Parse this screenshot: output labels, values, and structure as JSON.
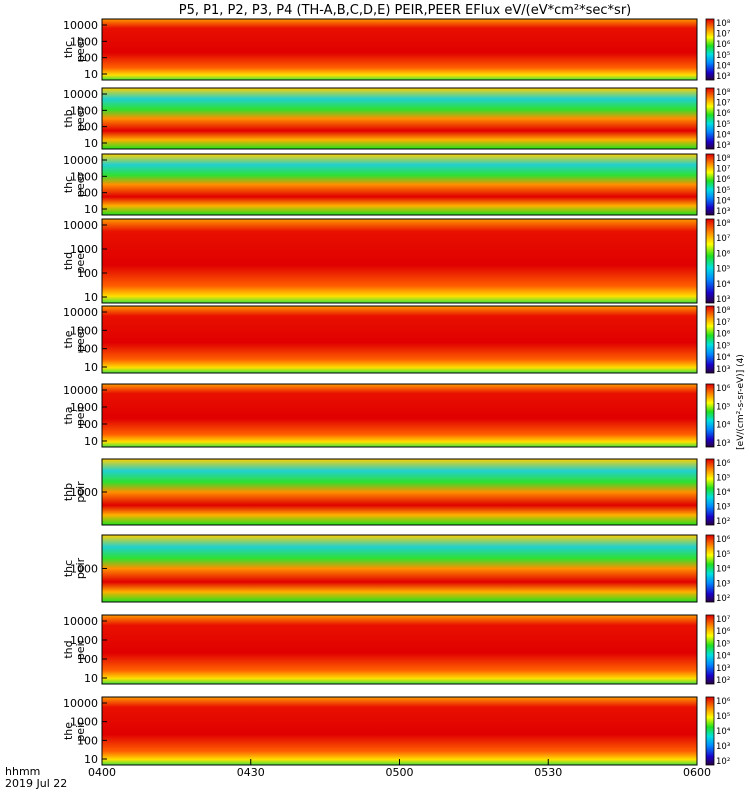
{
  "chart_data": {
    "type": "heatmap",
    "title": "P5, P1, P2, P3, P4 (TH-A,B,C,D,E) PEIR,PEER EFlux eV/(eV*cm²*sec*sr)",
    "x_axis": {
      "label_line1": "hhmm",
      "label_line2": "2019 Jul 22",
      "ticks": [
        "0400",
        "0430",
        "0500",
        "0530",
        "0600"
      ],
      "range_minutes": [
        0,
        120
      ]
    },
    "colorbar_label": "[eV/(cm²-s-sr-eV)] (4)",
    "panels": [
      {
        "probe": "thc",
        "species": "peer",
        "y_ticks": [
          "10",
          "100",
          "1000",
          "10000"
        ],
        "cb_ticks": [
          "10³",
          "10⁴",
          "10⁵",
          "10⁶",
          "10⁷",
          "10⁸"
        ]
      },
      {
        "probe": "thb",
        "species": "peer",
        "y_ticks": [
          "10",
          "100",
          "1000",
          "10000"
        ],
        "cb_ticks": [
          "10³",
          "10⁴",
          "10⁵",
          "10⁶",
          "10⁷",
          "10⁸"
        ]
      },
      {
        "probe": "thc",
        "species": "peer",
        "y_ticks": [
          "10",
          "100",
          "1000",
          "10000"
        ],
        "cb_ticks": [
          "10³",
          "10⁴",
          "10⁵",
          "10⁶",
          "10⁷",
          "10⁸"
        ]
      },
      {
        "probe": "thd",
        "species": "peer",
        "y_ticks": [
          "10",
          "100",
          "1000",
          "10000"
        ],
        "cb_ticks": [
          "10³",
          "10⁴",
          "10⁵",
          "10⁶",
          "10⁷",
          "10⁸"
        ]
      },
      {
        "probe": "the",
        "species": "peer",
        "y_ticks": [
          "10",
          "100",
          "1000",
          "10000"
        ],
        "cb_ticks": [
          "10³",
          "10⁴",
          "10⁵",
          "10⁶",
          "10⁷",
          "10⁸"
        ]
      },
      {
        "probe": "tha",
        "species": "peir",
        "y_ticks": [
          "10",
          "100",
          "1000",
          "10000"
        ],
        "cb_ticks": [
          "10³",
          "10⁴",
          "10⁵",
          "10⁶"
        ]
      },
      {
        "probe": "thb",
        "species": "peir",
        "y_ticks": [
          "1000"
        ],
        "cb_ticks": [
          "10²",
          "10³",
          "10⁴",
          "10⁵",
          "10⁶"
        ]
      },
      {
        "probe": "thc",
        "species": "peir",
        "y_ticks": [
          "1000"
        ],
        "cb_ticks": [
          "10²",
          "10³",
          "10⁴",
          "10⁵",
          "10⁶"
        ]
      },
      {
        "probe": "thd",
        "species": "peir",
        "y_ticks": [
          "10",
          "100",
          "1000",
          "10000"
        ],
        "cb_ticks": [
          "10²",
          "10³",
          "10⁴",
          "10⁵",
          "10⁶",
          "10⁷"
        ]
      },
      {
        "probe": "the",
        "species": "peir",
        "y_ticks": [
          "10",
          "100",
          "1000",
          "10000"
        ],
        "cb_ticks": [
          "10²",
          "10³",
          "10⁴",
          "10⁵",
          "10⁶"
        ]
      }
    ]
  }
}
